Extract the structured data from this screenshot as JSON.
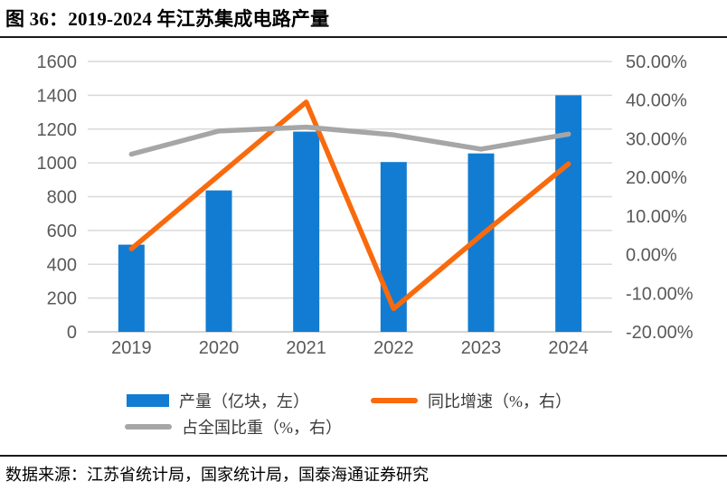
{
  "title": "图 36：2019-2024 年江苏集成电路产量",
  "source_note": "数据来源：江苏省统计局，国家统计局，国泰海通证券研究",
  "colors": {
    "bar_blue": "#127CD2",
    "line_orange": "#F96A0D",
    "line_gray": "#A6A6A6",
    "gridline": "#D9D9D9",
    "axis_line": "#C9C9C9",
    "tick_text": "#595959",
    "rule_black": "#1a1a1a"
  },
  "chart_data": {
    "type": "bar+line combo",
    "categories": [
      "2019",
      "2020",
      "2021",
      "2022",
      "2023",
      "2024"
    ],
    "series": [
      {
        "key": "production",
        "name": "产量（亿块，左）",
        "type": "bar",
        "axis": "left",
        "color": "#127CD2",
        "values": [
          516,
          837,
          1185,
          1005,
          1056,
          1400
        ]
      },
      {
        "key": "yoy_growth",
        "name": "同比增速（%，右）",
        "type": "line",
        "axis": "right",
        "color": "#F96A0D",
        "values": [
          1.5,
          20.5,
          39.5,
          -14.0,
          5.0,
          23.5
        ]
      },
      {
        "key": "national_share",
        "name": "占全国比重（%，右）",
        "type": "line",
        "axis": "right",
        "color": "#A6A6A6",
        "values": [
          26.0,
          32.0,
          33.0,
          31.0,
          27.3,
          31.2
        ]
      }
    ],
    "left_axis": {
      "min": 0,
      "max": 1600,
      "step": 200,
      "ticks_top_to_bottom": [
        "1600",
        "1400",
        "1200",
        "1000",
        "800",
        "600",
        "400",
        "200",
        "0"
      ]
    },
    "right_axis": {
      "min": -20,
      "max": 50,
      "step": 10,
      "ticks_top_to_bottom": [
        "50.00%",
        "40.00%",
        "30.00%",
        "20.00%",
        "10.00%",
        "0.00%",
        "-10.00%",
        "-20.00%"
      ]
    },
    "grid": "horizontal only",
    "legend_position": "bottom-left, two rows"
  }
}
